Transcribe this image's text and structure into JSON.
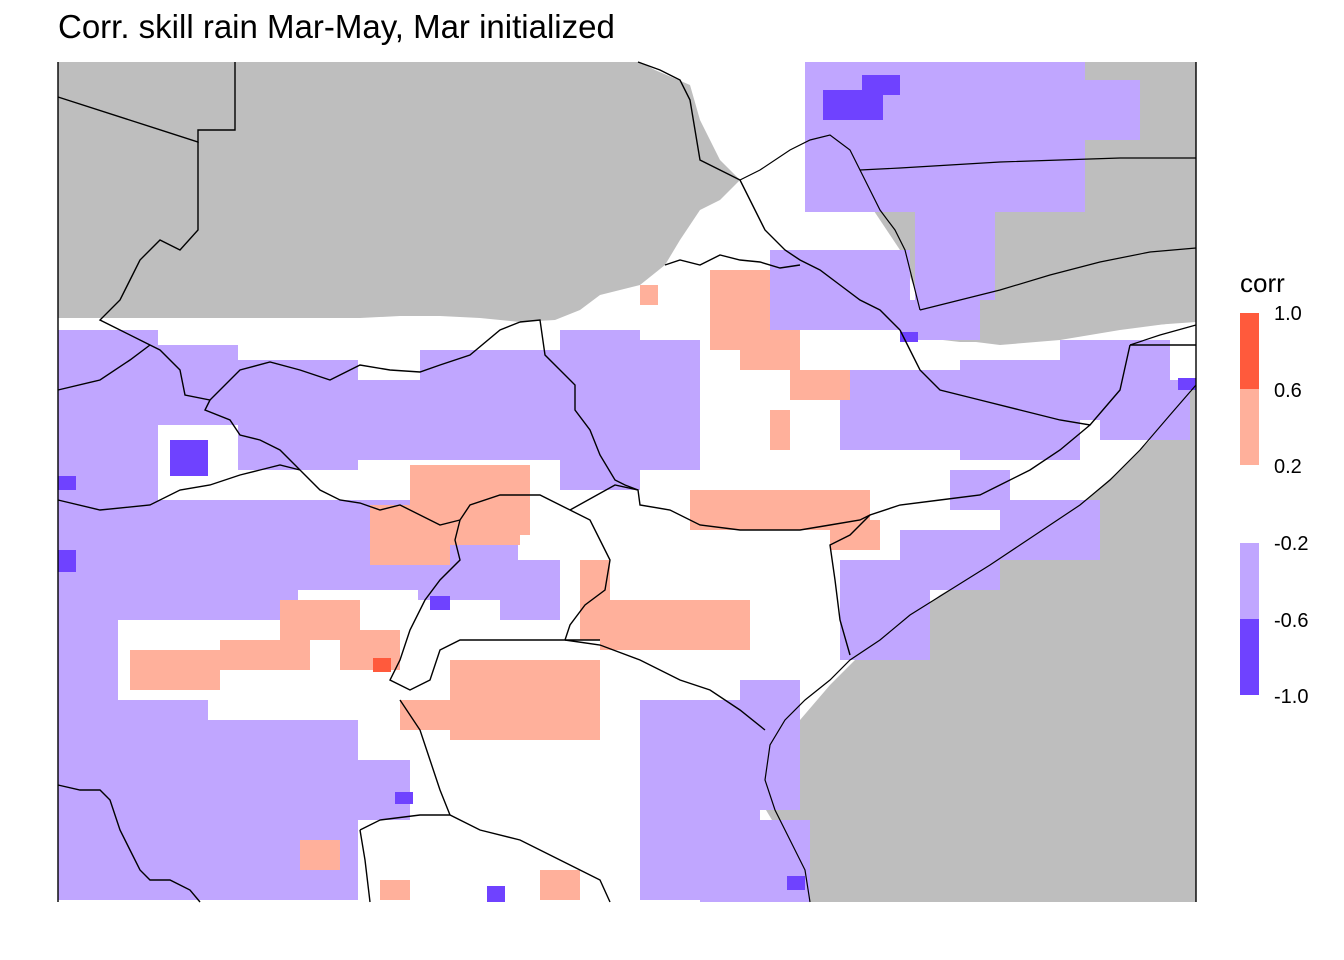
{
  "title": "Corr. skill rain Mar-May, Mar initialized",
  "legend": {
    "title": "corr",
    "positive": {
      "labels": [
        "1.0",
        "0.6",
        "0.2"
      ],
      "bins": [
        {
          "range": [
            0.6,
            1.0
          ],
          "color": "#ff5a3c"
        },
        {
          "range": [
            0.2,
            0.6
          ],
          "color": "#ffb09b"
        }
      ]
    },
    "negative": {
      "labels": [
        "-0.2",
        "-0.6",
        "-1.0"
      ],
      "bins": [
        {
          "range": [
            -0.6,
            -0.2
          ],
          "color": "#c0a6ff"
        },
        {
          "range": [
            -1.0,
            -0.6
          ],
          "color": "#6f42ff"
        }
      ]
    }
  },
  "colors": {
    "land_no_data": "#bebebe",
    "ocean": "#bebebe",
    "background": "#ffffff",
    "borders": "#000000"
  }
}
